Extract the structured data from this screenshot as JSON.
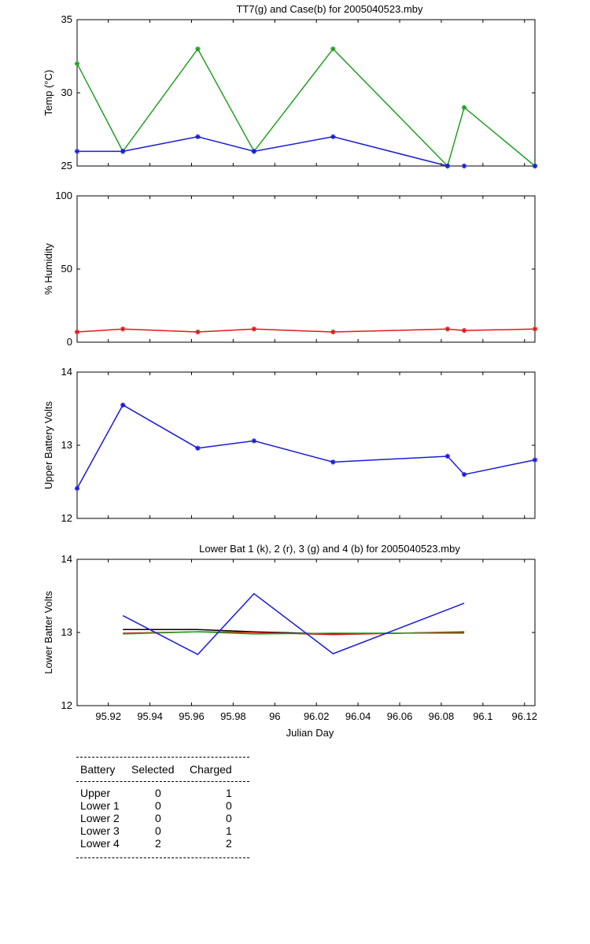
{
  "chart_data": [
    {
      "type": "line",
      "title": "TT7(g) and Case(b) for 2005040523.mby",
      "xlabel": "",
      "ylabel": "Temp  (°C)",
      "xlim": [
        95.905,
        96.125
      ],
      "ylim": [
        25,
        35
      ],
      "yticks": [
        25,
        30,
        35
      ],
      "grid": false,
      "series": [
        {
          "color": "#22a022",
          "marker": "star",
          "points": [
            [
              95.905,
              32
            ],
            [
              95.927,
              26
            ],
            [
              95.963,
              33
            ],
            [
              95.99,
              26
            ],
            [
              96.028,
              33
            ],
            [
              96.083,
              25
            ],
            [
              96.091,
              29
            ],
            [
              96.125,
              25
            ]
          ]
        },
        {
          "color": "#1a1adb",
          "marker": "star",
          "points": [
            [
              95.905,
              26
            ],
            [
              95.927,
              26
            ],
            [
              95.963,
              27
            ],
            [
              95.99,
              26
            ],
            [
              96.028,
              27
            ],
            [
              96.083,
              25
            ]
          ]
        },
        {
          "color": "#1a1adb",
          "marker": "star",
          "points": [
            [
              96.091,
              25
            ]
          ]
        },
        {
          "color": "#1a1adb",
          "marker": "star",
          "points": [
            [
              96.125,
              25
            ]
          ]
        }
      ]
    },
    {
      "type": "line",
      "title": "",
      "xlabel": "",
      "ylabel": "% Humidity",
      "xlim": [
        95.905,
        96.125
      ],
      "ylim": [
        0,
        100
      ],
      "yticks": [
        0,
        50,
        100
      ],
      "grid": false,
      "series": [
        {
          "color": "#e01818",
          "marker": "star",
          "points": [
            [
              95.905,
              7
            ],
            [
              95.927,
              9
            ],
            [
              95.963,
              7
            ],
            [
              95.99,
              9
            ],
            [
              96.028,
              7
            ],
            [
              96.083,
              9
            ],
            [
              96.091,
              8
            ],
            [
              96.125,
              9
            ]
          ]
        }
      ]
    },
    {
      "type": "line",
      "title": "",
      "xlabel": "",
      "ylabel": "Upper Battery Volts",
      "xlim": [
        95.905,
        96.125
      ],
      "ylim": [
        12,
        14
      ],
      "yticks": [
        12,
        13,
        14
      ],
      "grid": false,
      "series": [
        {
          "color": "#1a1adb",
          "marker": "star",
          "points": [
            [
              95.905,
              12.41
            ],
            [
              95.927,
              13.55
            ],
            [
              95.963,
              12.96
            ],
            [
              95.99,
              13.06
            ],
            [
              96.028,
              12.77
            ],
            [
              96.083,
              12.85
            ],
            [
              96.091,
              12.6
            ],
            [
              96.125,
              12.8
            ]
          ]
        }
      ]
    },
    {
      "type": "line",
      "title": "Lower Bat 1 (k), 2 (r), 3 (g) and 4 (b) for 2005040523.mby",
      "xlabel": "Julian Day",
      "ylabel": "Lower Batter Volts",
      "xlim": [
        95.905,
        96.125
      ],
      "ylim": [
        12,
        14
      ],
      "yticks": [
        12,
        13,
        14
      ],
      "xticks": [
        "95.92",
        "95.94",
        "95.96",
        "95.98",
        "96",
        "96.02",
        "96.04",
        "96.06",
        "96.08",
        "96.1",
        "96.12"
      ],
      "grid": false,
      "series": [
        {
          "color": "#000000",
          "marker": "none",
          "points": [
            [
              95.927,
              13.04
            ],
            [
              95.963,
              13.04
            ],
            [
              95.99,
              13.01
            ],
            [
              96.028,
              12.98
            ],
            [
              96.091,
              13.0
            ]
          ]
        },
        {
          "color": "#e01818",
          "marker": "none",
          "points": [
            [
              95.927,
              12.99
            ],
            [
              95.963,
              13.01
            ],
            [
              95.99,
              13.0
            ],
            [
              96.028,
              12.97
            ],
            [
              96.091,
              13.01
            ]
          ]
        },
        {
          "color": "#22a022",
          "marker": "none",
          "points": [
            [
              95.927,
              12.98
            ],
            [
              95.963,
              13.01
            ],
            [
              95.99,
              12.98
            ],
            [
              96.028,
              12.99
            ],
            [
              96.091,
              12.99
            ]
          ]
        },
        {
          "color": "#1a1adb",
          "marker": "none",
          "points": [
            [
              95.927,
              13.23
            ],
            [
              95.963,
              12.7
            ],
            [
              95.99,
              13.53
            ],
            [
              96.028,
              12.71
            ],
            [
              96.091,
              13.4
            ]
          ]
        }
      ]
    }
  ],
  "battery_table": {
    "headers": [
      "Battery",
      "Selected",
      "Charged"
    ],
    "rows": [
      {
        "battery": "Upper",
        "selected": "0",
        "charged": "1"
      },
      {
        "battery": "Lower 1",
        "selected": "0",
        "charged": "0"
      },
      {
        "battery": "Lower 2",
        "selected": "0",
        "charged": "0"
      },
      {
        "battery": "Lower 3",
        "selected": "0",
        "charged": "1"
      },
      {
        "battery": "Lower 4",
        "selected": "2",
        "charged": "2"
      }
    ]
  }
}
